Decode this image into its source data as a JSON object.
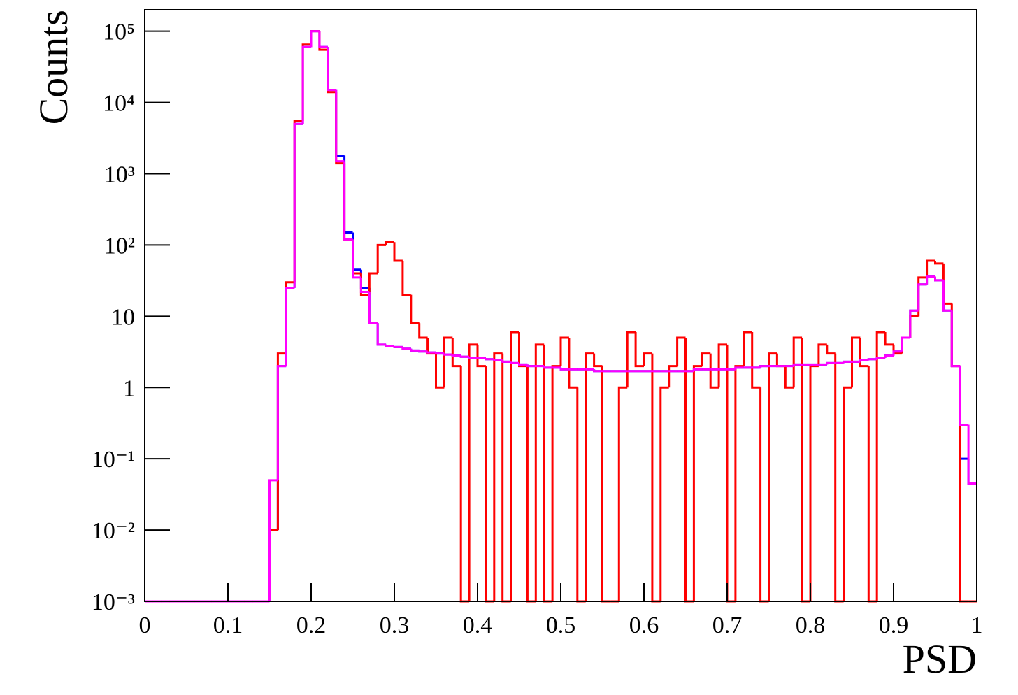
{
  "chart_data": {
    "type": "histogram",
    "x_label": "PSD",
    "y_label": "Counts",
    "log_y": true,
    "xlim": [
      0,
      1
    ],
    "ylim": [
      0.001,
      200000
    ],
    "xticks": [
      0,
      0.1,
      0.2,
      0.3,
      0.4,
      0.5,
      0.6,
      0.7,
      0.8,
      0.9,
      1
    ],
    "yticks": [
      {
        "value": 0.001,
        "label": "10⁻³"
      },
      {
        "value": 0.01,
        "label": "10⁻²"
      },
      {
        "value": 0.1,
        "label": "10⁻¹"
      },
      1,
      10,
      {
        "value": 100,
        "label": "10²"
      },
      {
        "value": 1000,
        "label": "10³"
      },
      {
        "value": 10000,
        "label": "10⁴"
      },
      {
        "value": 100000,
        "label": "10⁵"
      }
    ],
    "bins": [
      0,
      0.01,
      0.02,
      0.03,
      0.04,
      0.05,
      0.06,
      0.07,
      0.08,
      0.09,
      0.1,
      0.11,
      0.12,
      0.13,
      0.14,
      0.15,
      0.16,
      0.17,
      0.18,
      0.19,
      0.2,
      0.21,
      0.22,
      0.23,
      0.24,
      0.25,
      0.26,
      0.27,
      0.28,
      0.29,
      0.3,
      0.31,
      0.32,
      0.33,
      0.34,
      0.35,
      0.36,
      0.37,
      0.38,
      0.39,
      0.4,
      0.41,
      0.42,
      0.43,
      0.44,
      0.45,
      0.46,
      0.47,
      0.48,
      0.49,
      0.5,
      0.51,
      0.52,
      0.53,
      0.54,
      0.55,
      0.56,
      0.57,
      0.58,
      0.59,
      0.6,
      0.61,
      0.62,
      0.63,
      0.64,
      0.65,
      0.66,
      0.67,
      0.68,
      0.69,
      0.7,
      0.71,
      0.72,
      0.73,
      0.74,
      0.75,
      0.76,
      0.77,
      0.78,
      0.79,
      0.8,
      0.81,
      0.82,
      0.83,
      0.84,
      0.85,
      0.86,
      0.87,
      0.88,
      0.89,
      0.9,
      0.91,
      0.92,
      0.93,
      0.94,
      0.95,
      0.96,
      0.97,
      0.98,
      0.99,
      1
    ],
    "series": [
      {
        "color": "#0000ff",
        "values": [
          0.001,
          0.001,
          0.001,
          0.001,
          0.001,
          0.001,
          0.001,
          0.001,
          0.001,
          0.001,
          0.001,
          0.001,
          0.001,
          0.001,
          0.001,
          0.01,
          2,
          25,
          5000,
          60000,
          100000,
          60000,
          15000,
          1800,
          150,
          45,
          25,
          8,
          4,
          3.8,
          3.7,
          3.5,
          3.3,
          3.2,
          3.1,
          3.0,
          2.9,
          2.8,
          2.7,
          2.6,
          2.6,
          2.5,
          2.4,
          2.3,
          2.2,
          2.1,
          2.0,
          2.0,
          1.9,
          1.9,
          1.8,
          1.8,
          1.8,
          1.8,
          1.7,
          1.7,
          1.7,
          1.7,
          1.7,
          1.7,
          1.7,
          1.7,
          1.7,
          1.7,
          1.7,
          1.7,
          1.8,
          1.8,
          1.8,
          1.8,
          1.8,
          1.9,
          1.9,
          1.9,
          2.0,
          2.0,
          2.0,
          2.0,
          2.1,
          2.1,
          2.1,
          2.1,
          2.2,
          2.2,
          2.3,
          2.3,
          2.4,
          2.5,
          2.6,
          2.8,
          3.2,
          5,
          12,
          28,
          36,
          32,
          12,
          2,
          0.1,
          0.045
        ]
      },
      {
        "color": "#ff0000",
        "values": [
          0.001,
          0.001,
          0.001,
          0.001,
          0.001,
          0.001,
          0.001,
          0.001,
          0.001,
          0.001,
          0.001,
          0.001,
          0.001,
          0.001,
          0.001,
          0.01,
          3,
          30,
          5500,
          65000,
          100000,
          55000,
          14000,
          1400,
          120,
          40,
          20,
          40,
          100,
          110,
          60,
          20,
          8,
          5,
          3,
          1,
          5,
          2,
          0,
          4,
          2,
          0,
          3,
          0,
          6,
          2,
          0,
          4,
          0,
          2,
          5,
          1,
          0,
          3,
          2,
          0,
          0,
          1,
          6,
          2,
          3,
          0,
          1,
          2,
          5,
          0,
          2,
          3,
          1,
          4,
          0,
          2,
          6,
          1,
          0,
          3,
          2,
          1,
          5,
          0,
          2,
          4,
          3,
          0,
          1,
          5,
          2,
          0,
          6,
          4,
          3,
          5,
          10,
          35,
          60,
          55,
          15,
          2,
          0,
          0
        ]
      },
      {
        "color": "#ff00ff",
        "values": [
          0.001,
          0.001,
          0.001,
          0.001,
          0.001,
          0.001,
          0.001,
          0.001,
          0.001,
          0.001,
          0.001,
          0.001,
          0.001,
          0.001,
          0.001,
          0.05,
          2,
          25,
          5000,
          60000,
          100000,
          60000,
          15000,
          1500,
          120,
          35,
          22,
          8,
          4,
          3.8,
          3.7,
          3.5,
          3.3,
          3.2,
          3.1,
          3.0,
          2.9,
          2.8,
          2.7,
          2.6,
          2.6,
          2.5,
          2.4,
          2.3,
          2.2,
          2.1,
          2.0,
          2.0,
          1.9,
          1.9,
          1.8,
          1.8,
          1.8,
          1.8,
          1.7,
          1.7,
          1.7,
          1.7,
          1.7,
          1.7,
          1.7,
          1.7,
          1.7,
          1.7,
          1.7,
          1.7,
          1.8,
          1.8,
          1.8,
          1.8,
          1.8,
          1.9,
          1.9,
          1.9,
          2.0,
          2.0,
          2.0,
          2.0,
          2.1,
          2.1,
          2.1,
          2.1,
          2.2,
          2.2,
          2.3,
          2.3,
          2.4,
          2.5,
          2.6,
          2.8,
          3.2,
          5,
          12,
          28,
          36,
          32,
          12,
          2,
          0.3,
          0.045
        ]
      }
    ]
  }
}
